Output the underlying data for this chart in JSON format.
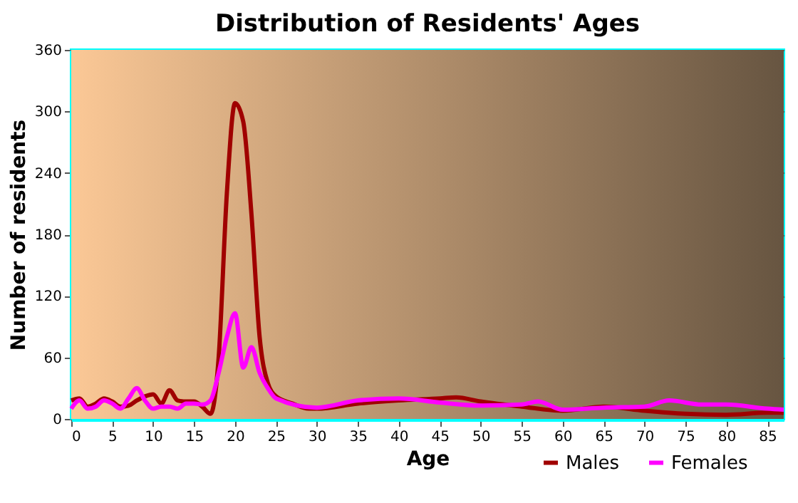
{
  "chart_data": {
    "type": "line",
    "title": "Distribution of Residents' Ages",
    "xlabel": "Age",
    "ylabel": "Number of residents",
    "xlim": [
      0,
      87
    ],
    "xticks": [
      0,
      5,
      10,
      15,
      20,
      25,
      30,
      35,
      40,
      45,
      50,
      55,
      60,
      65,
      70,
      75,
      80,
      85
    ],
    "ylim": [
      0,
      360
    ],
    "yticks": [
      0,
      60,
      120,
      180,
      240,
      300,
      360
    ],
    "grid": true,
    "legend": "bottom right",
    "line_style": "solid",
    "marker": "none",
    "series": [
      {
        "name": "Males",
        "color": "#a00000",
        "x": [
          0,
          1,
          2,
          3,
          4,
          5,
          6,
          7,
          8,
          9,
          10,
          11,
          12,
          13,
          14,
          15,
          16,
          17,
          18,
          19,
          20,
          21,
          22,
          23,
          24,
          25,
          27,
          29,
          30,
          35,
          40,
          45,
          47,
          50,
          55,
          60,
          65,
          70,
          75,
          80,
          85,
          87
        ],
        "values": [
          18,
          20,
          12,
          15,
          20,
          17,
          12,
          13,
          18,
          22,
          24,
          15,
          28,
          18,
          17,
          17,
          12,
          5,
          60,
          220,
          308,
          290,
          200,
          80,
          35,
          22,
          15,
          10,
          10,
          15,
          18,
          20,
          21,
          17,
          12,
          8,
          12,
          8,
          5,
          4,
          6,
          6
        ]
      },
      {
        "name": "Females",
        "color": "#ff00ff",
        "x": [
          0,
          1,
          2,
          3,
          4,
          5,
          6,
          7,
          8,
          9,
          10,
          11,
          12,
          13,
          14,
          15,
          16,
          17,
          18,
          19,
          20,
          21,
          22,
          23,
          24,
          25,
          30,
          35,
          40,
          45,
          50,
          55,
          57,
          60,
          65,
          70,
          73,
          77,
          80,
          85,
          87
        ],
        "values": [
          10,
          18,
          10,
          12,
          18,
          15,
          10,
          20,
          30,
          18,
          10,
          12,
          12,
          10,
          15,
          15,
          14,
          18,
          45,
          80,
          103,
          50,
          70,
          45,
          30,
          20,
          11,
          18,
          20,
          16,
          13,
          14,
          17,
          9,
          11,
          12,
          18,
          14,
          14,
          10,
          9
        ]
      }
    ]
  }
}
